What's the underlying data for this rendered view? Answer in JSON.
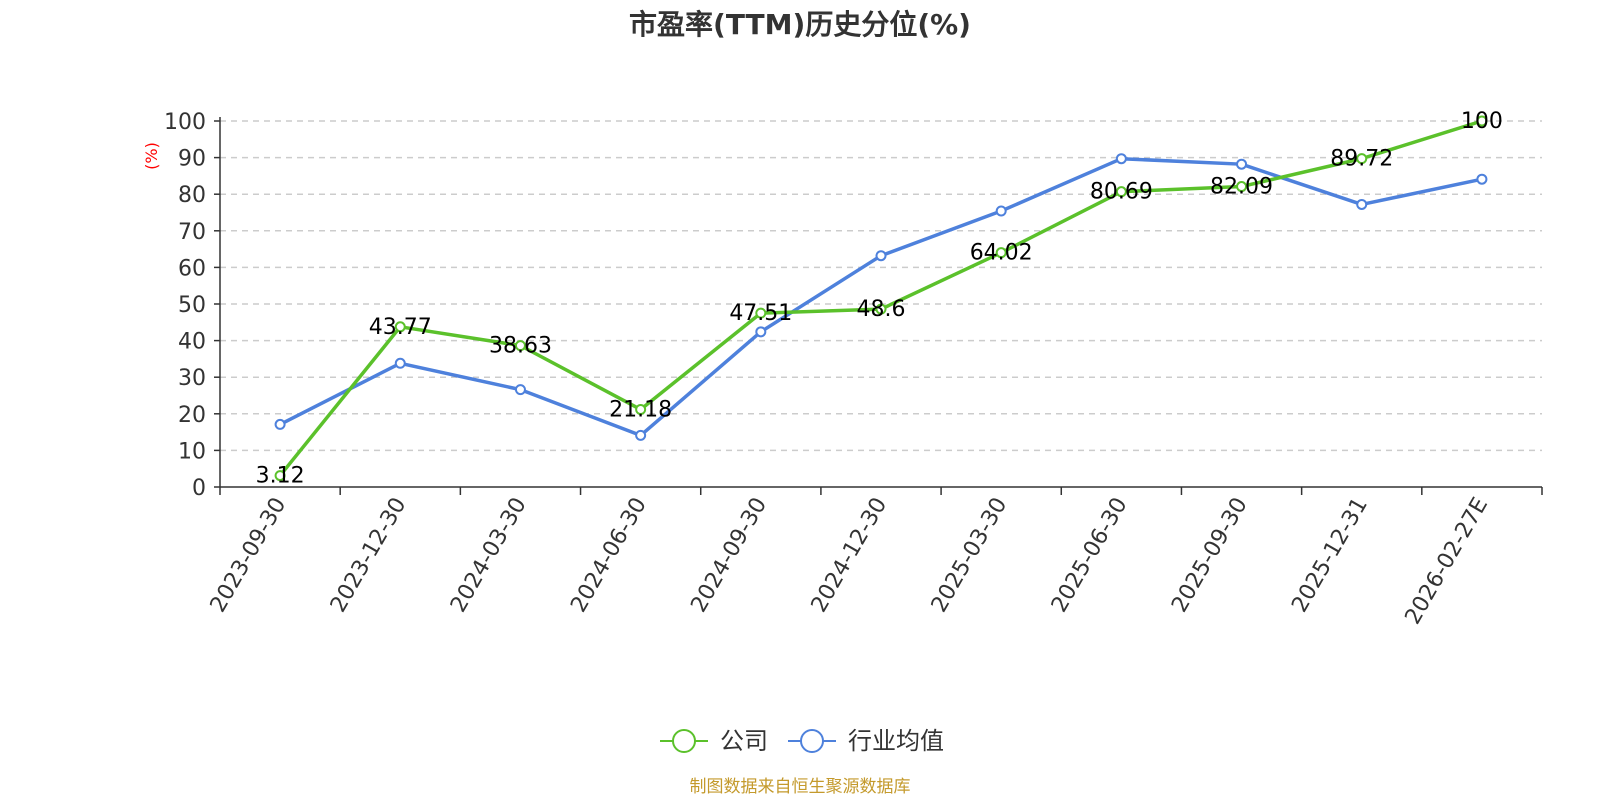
{
  "title": "市盈率(TTM)历史分位(%)",
  "source": "制图数据来自恒生聚源数据库",
  "colors": {
    "company": "#5bc12b",
    "industry": "#4e81dc",
    "unit": "#ff0000",
    "source": "#c49a2c",
    "grid": "#cccccc",
    "axis": "#333333"
  },
  "chart_data": {
    "type": "line",
    "title": "市盈率(TTM)历史分位(%)",
    "ylabel": "(%)",
    "xlabel": "",
    "ylim": [
      0,
      100
    ],
    "yticks": [
      0,
      10,
      20,
      30,
      40,
      50,
      60,
      70,
      80,
      90,
      100
    ],
    "grid": true,
    "legend_position": "bottom-center",
    "categories": [
      "2023-09-30",
      "2023-12-30",
      "2024-03-30",
      "2024-06-30",
      "2024-09-30",
      "2024-12-30",
      "2025-03-30",
      "2025-06-30",
      "2025-09-30",
      "2025-12-31",
      "2026-02-27E"
    ],
    "series": [
      {
        "name": "公司",
        "color": "#5bc12b",
        "values": [
          3.12,
          43.77,
          38.63,
          21.18,
          47.51,
          48.6,
          64.02,
          80.69,
          82.09,
          89.72,
          100
        ],
        "labels": [
          "3.12",
          "43.77",
          "38.63",
          "21.18",
          "47.51",
          "48.6",
          "64.02",
          "80.69",
          "82.09",
          "89.72",
          "100"
        ],
        "show_labels": true
      },
      {
        "name": "行业均值",
        "color": "#4e81dc",
        "values": [
          17.1,
          33.8,
          26.6,
          14.1,
          42.4,
          63.2,
          75.4,
          89.7,
          88.2,
          77.2,
          84.1
        ],
        "show_labels": false
      }
    ]
  }
}
